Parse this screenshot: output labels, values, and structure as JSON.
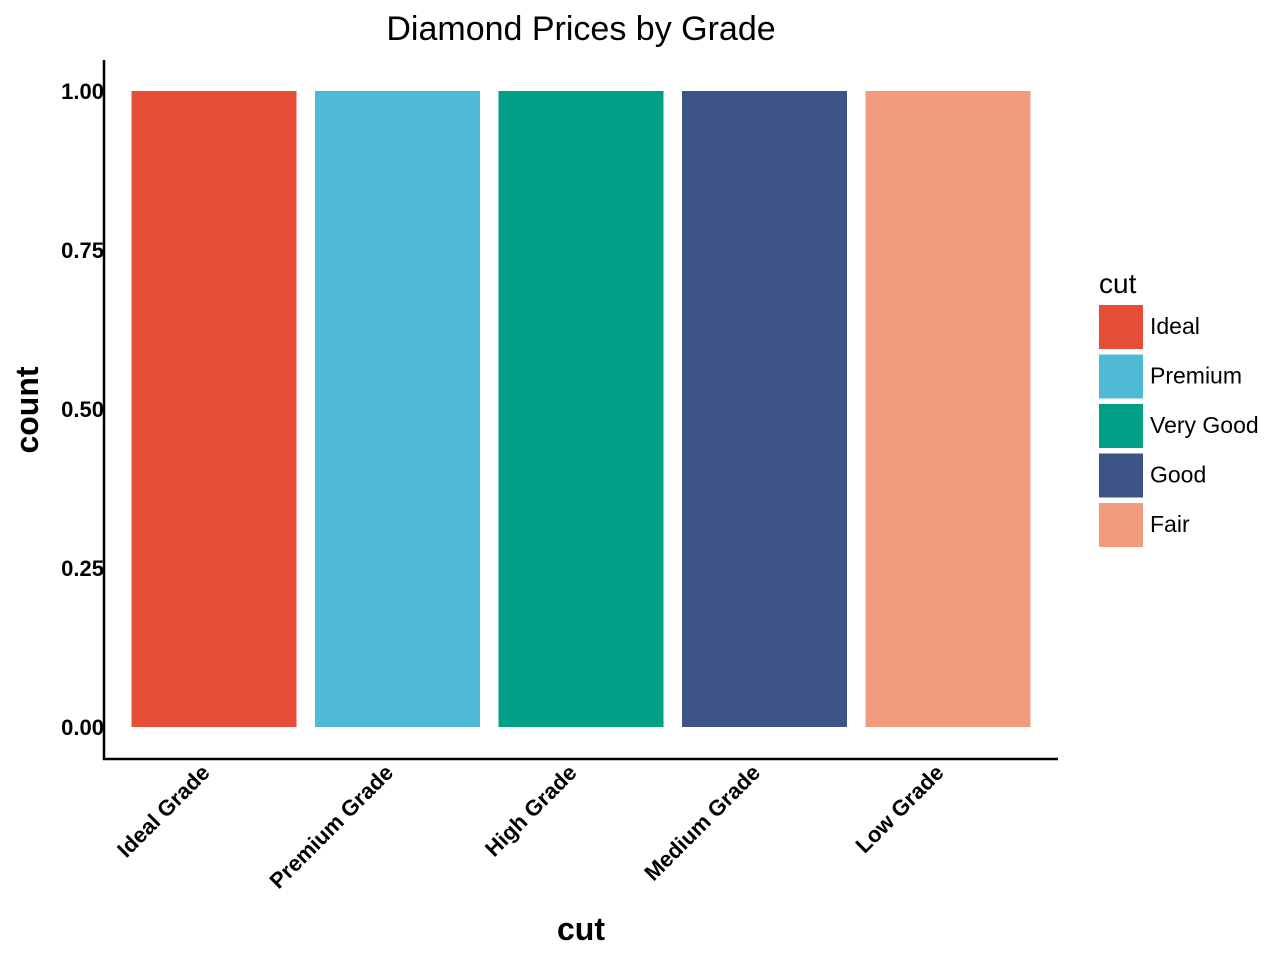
{
  "chart_data": {
    "type": "bar",
    "title": "Diamond Prices by Grade",
    "xlabel": "cut",
    "ylabel": "count",
    "categories": [
      "Ideal Grade",
      "Premium Grade",
      "High Grade",
      "Medium Grade",
      "Low Grade"
    ],
    "values": [
      1,
      1,
      1,
      1,
      1
    ],
    "colors": [
      "#E64D37",
      "#4EBAD5",
      "#00A086",
      "#3C5386",
      "#F29B7F"
    ],
    "ylim": [
      0,
      1
    ],
    "y_ticks": [
      "0.00",
      "0.25",
      "0.50",
      "0.75",
      "1.00"
    ],
    "y_tick_values": [
      0,
      0.25,
      0.5,
      0.75,
      1
    ],
    "grid": false,
    "legend": {
      "title": "cut",
      "placement": "right",
      "entries": [
        {
          "label": "Ideal",
          "color": "#E64D37"
        },
        {
          "label": "Premium",
          "color": "#4EBAD5"
        },
        {
          "label": "Very Good",
          "color": "#00A086"
        },
        {
          "label": "Good",
          "color": "#3C5386"
        },
        {
          "label": "Fair",
          "color": "#F29B7F"
        }
      ]
    }
  }
}
